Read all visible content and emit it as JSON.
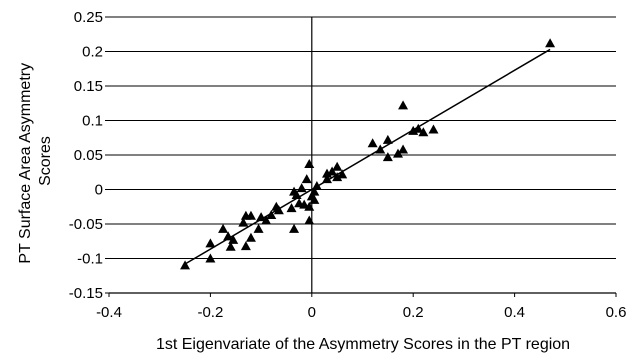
{
  "chart_data": {
    "type": "scatter",
    "xlabel": "1st Eigenvariate of the Asymmetry Scores in the PT region",
    "ylabel": [
      "PT Surface Area Asymmetry",
      "Scores"
    ],
    "xlim": [
      -0.4,
      0.6
    ],
    "ylim": [
      -0.15,
      0.25
    ],
    "x_ticks": [
      "-0.4",
      "-0.2",
      "0",
      "0.2",
      "0.4",
      "0.6"
    ],
    "y_ticks": [
      "0.25",
      "0.2",
      "0.15",
      "0.1",
      "0.05",
      "0",
      "-0.05",
      "-0.1",
      "-0.15"
    ],
    "grid": "horizontal",
    "marker": "triangle",
    "colors": {
      "marker": "#000000",
      "line": "#000000",
      "grid": "#000000"
    },
    "trendline": {
      "x": [
        -0.25,
        0.47
      ],
      "y": [
        -0.108,
        0.203
      ]
    },
    "points": [
      {
        "x": 0.47,
        "y": 0.212
      },
      {
        "x": 0.18,
        "y": 0.122
      },
      {
        "x": 0.21,
        "y": 0.088
      },
      {
        "x": 0.24,
        "y": 0.087
      },
      {
        "x": 0.2,
        "y": 0.085
      },
      {
        "x": 0.22,
        "y": 0.083
      },
      {
        "x": 0.15,
        "y": 0.072
      },
      {
        "x": 0.12,
        "y": 0.067
      },
      {
        "x": 0.18,
        "y": 0.058
      },
      {
        "x": 0.135,
        "y": 0.058
      },
      {
        "x": 0.17,
        "y": 0.052
      },
      {
        "x": 0.15,
        "y": 0.047
      },
      {
        "x": -0.005,
        "y": 0.037
      },
      {
        "x": 0.05,
        "y": 0.033
      },
      {
        "x": 0.04,
        "y": 0.026
      },
      {
        "x": 0.03,
        "y": 0.023
      },
      {
        "x": 0.06,
        "y": 0.022
      },
      {
        "x": 0.05,
        "y": 0.018
      },
      {
        "x": 0.03,
        "y": 0.015
      },
      {
        "x": -0.01,
        "y": 0.015
      },
      {
        "x": 0.01,
        "y": 0.005
      },
      {
        "x": -0.02,
        "y": 0.002
      },
      {
        "x": 0.005,
        "y": -0.003
      },
      {
        "x": -0.035,
        "y": -0.003
      },
      {
        "x": -0.03,
        "y": -0.008
      },
      {
        "x": 0.0,
        "y": -0.01
      },
      {
        "x": 0.005,
        "y": -0.015
      },
      {
        "x": -0.025,
        "y": -0.02
      },
      {
        "x": -0.015,
        "y": -0.022
      },
      {
        "x": -0.005,
        "y": -0.025
      },
      {
        "x": -0.07,
        "y": -0.025
      },
      {
        "x": -0.04,
        "y": -0.027
      },
      {
        "x": -0.065,
        "y": -0.03
      },
      {
        "x": -0.08,
        "y": -0.037
      },
      {
        "x": -0.13,
        "y": -0.038
      },
      {
        "x": -0.12,
        "y": -0.038
      },
      {
        "x": -0.1,
        "y": -0.04
      },
      {
        "x": -0.005,
        "y": -0.045
      },
      {
        "x": -0.09,
        "y": -0.045
      },
      {
        "x": -0.135,
        "y": -0.048
      },
      {
        "x": -0.035,
        "y": -0.057
      },
      {
        "x": -0.105,
        "y": -0.057
      },
      {
        "x": -0.175,
        "y": -0.057
      },
      {
        "x": -0.165,
        "y": -0.068
      },
      {
        "x": -0.12,
        "y": -0.07
      },
      {
        "x": -0.155,
        "y": -0.073
      },
      {
        "x": -0.2,
        "y": -0.078
      },
      {
        "x": -0.13,
        "y": -0.082
      },
      {
        "x": -0.16,
        "y": -0.083
      },
      {
        "x": -0.2,
        "y": -0.1
      },
      {
        "x": -0.25,
        "y": -0.11
      }
    ]
  }
}
